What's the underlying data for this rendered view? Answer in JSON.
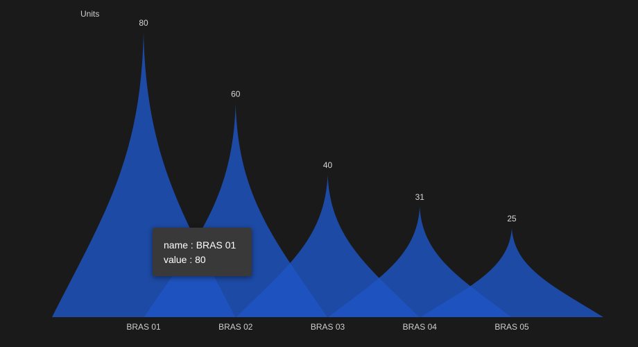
{
  "chart_data": {
    "type": "bar",
    "style": "pictorial-peak",
    "ylabel": "Units",
    "xlabel": "",
    "title": "",
    "categories": [
      "BRAS 01",
      "BRAS 02",
      "BRAS 03",
      "BRAS 04",
      "BRAS 05"
    ],
    "values": [
      80,
      60,
      40,
      31,
      25
    ],
    "ylim": [
      0,
      80
    ],
    "grid": false,
    "legend": "none",
    "series": [
      {
        "values": [
          80,
          60,
          40,
          31,
          25
        ],
        "color": "#1f56c4"
      }
    ]
  },
  "tooltip": {
    "name_line": "name : BRAS 01",
    "value_line": "value : 80"
  },
  "colors": {
    "background": "#1a1a1a",
    "peak_fill": "#1f56c4",
    "text": "#cfcfcf",
    "tooltip_bg": "#393939"
  }
}
